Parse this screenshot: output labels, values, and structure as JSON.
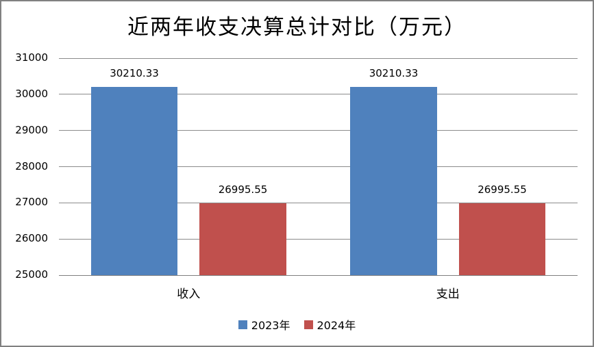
{
  "chart_data": {
    "type": "bar",
    "title": "近两年收支决算总计对比（万元）",
    "xlabel": "",
    "ylabel": "",
    "categories": [
      "收入",
      "支出"
    ],
    "series": [
      {
        "name": "2023年",
        "color": "#4F81BD",
        "values": [
          30210.33,
          30210.33
        ],
        "labels": [
          "30210.33",
          "30210.33"
        ]
      },
      {
        "name": "2024年",
        "color": "#C0504D",
        "values": [
          26995.55,
          26995.55
        ],
        "labels": [
          "26995.55",
          "26995.55"
        ]
      }
    ],
    "ylim": [
      25000,
      31000
    ],
    "yticks": [
      25000,
      26000,
      27000,
      28000,
      29000,
      30000,
      31000
    ],
    "ytick_labels": [
      "25000",
      "26000",
      "27000",
      "28000",
      "29000",
      "30000",
      "31000"
    ],
    "grid": true,
    "legend_position": "bottom"
  },
  "colors": {
    "gridline": "#8b8b8b",
    "axis_line": "#7f7f7f",
    "frame_border": "#808080",
    "series_2023": "#4F81BD",
    "series_2024": "#C0504D"
  }
}
